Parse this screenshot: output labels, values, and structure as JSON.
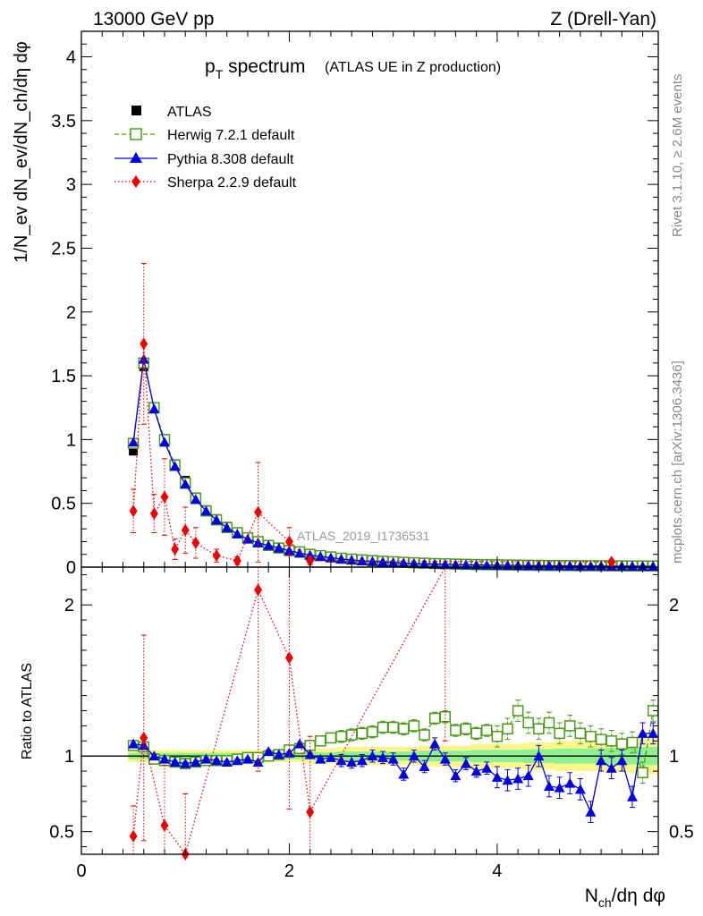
{
  "header": {
    "left": "13000 GeV pp",
    "right": "Z (Drell-Yan)"
  },
  "side": {
    "rivet": "Rivet 3.1.10, ≥ 2.6M events",
    "mcplots": "mcplots.cern.ch [arXiv:1306.3436]"
  },
  "watermark": "ATLAS_2019_I1736531",
  "chart_data": [
    {
      "type": "scatter",
      "title": "p_T spectrum",
      "title_main": "p",
      "title_sub": "T",
      "title_rest": " spectrum",
      "title_note": "(ATLAS UE in Z production)",
      "ylabel": "1/N_ev dN_ev/dN_ch/dη dφ",
      "xlim": [
        0,
        5.55
      ],
      "ylim": [
        0,
        4.2
      ],
      "yticks": [
        "0",
        "0.5",
        "1",
        "1.5",
        "2",
        "2.5",
        "3",
        "3.5",
        "4"
      ],
      "legend_position": "top-left",
      "x": [
        0.5,
        0.6,
        0.7,
        0.8,
        0.9,
        1.0,
        1.1,
        1.2,
        1.3,
        1.4,
        1.5,
        1.6,
        1.7,
        1.8,
        1.9,
        2.0,
        2.1,
        2.2,
        2.3,
        2.4,
        2.5,
        2.6,
        2.7,
        2.8,
        2.9,
        3.0,
        3.1,
        3.2,
        3.3,
        3.4,
        3.5,
        3.6,
        3.7,
        3.8,
        3.9,
        4.0,
        4.1,
        4.2,
        4.3,
        4.4,
        4.5,
        4.6,
        4.7,
        4.8,
        4.9,
        5.0,
        5.1,
        5.2,
        5.3,
        5.4,
        5.5
      ],
      "series": [
        {
          "name": "ATLAS",
          "style": "data",
          "color": "#000000",
          "values": [
            0.91,
            1.57,
            1.24,
            1.0,
            0.81,
            0.68,
            0.55,
            0.45,
            0.38,
            0.32,
            0.27,
            0.23,
            0.2,
            0.17,
            0.15,
            0.13,
            0.11,
            0.095,
            0.085,
            0.075,
            0.066,
            0.058,
            0.052,
            0.046,
            0.041,
            0.037,
            0.033,
            0.03,
            0.027,
            0.025,
            0.023,
            0.021,
            0.019,
            0.018,
            0.017,
            0.016,
            0.015,
            0.014,
            0.013,
            0.012,
            0.012,
            0.011,
            0.011,
            0.01,
            0.01,
            0.009,
            0.009,
            0.009,
            0.008,
            0.008,
            0.008
          ]
        },
        {
          "name": "Herwig 7.2.1 default",
          "style": "herwig",
          "color": "#4a9a1a",
          "values": [
            0.97,
            1.6,
            1.25,
            1.0,
            0.8,
            0.66,
            0.54,
            0.44,
            0.37,
            0.31,
            0.27,
            0.23,
            0.2,
            0.17,
            0.15,
            0.13,
            0.12,
            0.1,
            0.09,
            0.08,
            0.07,
            0.063,
            0.057,
            0.051,
            0.046,
            0.042,
            0.038,
            0.034,
            0.031,
            0.028,
            0.026,
            0.024,
            0.022,
            0.02,
            0.019,
            0.018,
            0.017,
            0.016,
            0.015,
            0.014,
            0.013,
            0.013,
            0.012,
            0.011,
            0.011,
            0.011,
            0.01,
            0.01,
            0.009,
            0.009,
            0.009
          ]
        },
        {
          "name": "Pythia 8.308 default",
          "style": "pythia",
          "color": "#0000dd",
          "values": [
            0.98,
            1.63,
            1.24,
            0.98,
            0.79,
            0.65,
            0.53,
            0.44,
            0.37,
            0.31,
            0.26,
            0.22,
            0.19,
            0.17,
            0.15,
            0.13,
            0.11,
            0.094,
            0.084,
            0.074,
            0.064,
            0.056,
            0.05,
            0.045,
            0.04,
            0.036,
            0.032,
            0.029,
            0.026,
            0.024,
            0.022,
            0.02,
            0.018,
            0.017,
            0.016,
            0.015,
            0.014,
            0.013,
            0.012,
            0.011,
            0.011,
            0.01,
            0.01,
            0.009,
            0.009,
            0.009,
            0.008,
            0.008,
            0.008,
            0.007,
            0.007
          ]
        },
        {
          "name": "Sherpa 2.2.9 default",
          "style": "sherpa",
          "color": "#ee0000",
          "x": [
            0.5,
            0.6,
            0.7,
            0.8,
            0.9,
            1.0,
            1.1,
            1.3,
            1.5,
            1.7,
            2.0,
            2.2,
            5.1
          ],
          "values": [
            0.44,
            1.75,
            0.42,
            0.55,
            0.14,
            0.29,
            0.19,
            0.09,
            0.05,
            0.43,
            0.2,
            0.05,
            0.04
          ]
        }
      ]
    },
    {
      "type": "scatter",
      "title": "",
      "ylabel": "Ratio to ATLAS",
      "xlabel": "N_ch/dη dφ",
      "xlabel_main": "N",
      "xlabel_sub": "ch",
      "xlabel_rest": "/dη dφ",
      "xlim": [
        0,
        5.55
      ],
      "ylim": [
        0.35,
        2.25
      ],
      "xticks": [
        "0",
        "2",
        "4"
      ],
      "yticks": [
        "0.5",
        "1",
        "2"
      ],
      "x": [
        0.5,
        0.6,
        0.7,
        0.8,
        0.9,
        1.0,
        1.1,
        1.2,
        1.3,
        1.4,
        1.5,
        1.6,
        1.7,
        1.8,
        1.9,
        2.0,
        2.1,
        2.2,
        2.3,
        2.4,
        2.5,
        2.6,
        2.7,
        2.8,
        2.9,
        3.0,
        3.1,
        3.2,
        3.3,
        3.4,
        3.5,
        3.6,
        3.7,
        3.8,
        3.9,
        4.0,
        4.1,
        4.2,
        4.3,
        4.4,
        4.5,
        4.6,
        4.7,
        4.8,
        4.9,
        5.0,
        5.1,
        5.2,
        5.3,
        5.4,
        5.5
      ],
      "band_halfwidth": [
        0.02,
        0.02,
        0.02,
        0.02,
        0.02,
        0.02,
        0.02,
        0.02,
        0.02,
        0.02,
        0.02,
        0.02,
        0.02,
        0.02,
        0.02,
        0.02,
        0.02,
        0.025,
        0.025,
        0.025,
        0.03,
        0.03,
        0.03,
        0.03,
        0.03,
        0.03,
        0.03,
        0.03,
        0.035,
        0.035,
        0.035,
        0.035,
        0.035,
        0.04,
        0.04,
        0.04,
        0.04,
        0.04,
        0.045,
        0.045,
        0.045,
        0.05,
        0.05,
        0.05,
        0.05,
        0.05,
        0.055,
        0.055,
        0.055,
        0.06,
        0.06
      ],
      "series": [
        {
          "name": "Herwig 7.2.1 default",
          "style": "herwig",
          "color": "#4a9a1a",
          "values": [
            1.07,
            1.06,
            0.98,
            0.97,
            0.96,
            0.95,
            0.96,
            0.97,
            0.97,
            0.97,
            0.98,
            0.99,
            0.99,
            1.0,
            1.01,
            1.04,
            1.05,
            1.07,
            1.1,
            1.12,
            1.13,
            1.14,
            1.15,
            1.16,
            1.19,
            1.19,
            1.18,
            1.2,
            1.14,
            1.25,
            1.26,
            1.17,
            1.18,
            1.15,
            1.17,
            1.13,
            1.18,
            1.3,
            1.22,
            1.18,
            1.22,
            1.15,
            1.2,
            1.15,
            1.13,
            1.11,
            1.1,
            1.08,
            1.09,
            0.89,
            1.3
          ]
        },
        {
          "name": "Pythia 8.308 default",
          "style": "pythia",
          "color": "#0000dd",
          "values": [
            1.08,
            1.07,
            1.0,
            0.98,
            0.96,
            0.95,
            0.96,
            0.98,
            0.97,
            0.96,
            0.97,
            0.98,
            0.96,
            1.03,
            1.01,
            1.02,
            1.08,
            1.01,
            0.98,
            0.99,
            0.97,
            0.96,
            0.97,
            1.0,
            0.99,
            0.98,
            0.88,
            1.0,
            0.93,
            1.08,
            0.98,
            0.87,
            0.95,
            0.9,
            0.92,
            0.86,
            0.84,
            0.85,
            0.87,
            1.0,
            0.8,
            0.79,
            0.82,
            0.78,
            0.63,
            0.97,
            0.92,
            0.97,
            0.73,
            1.15,
            1.15
          ]
        },
        {
          "name": "Sherpa 2.2.9 default",
          "style": "sherpa",
          "color": "#ee0000",
          "x": [
            0.5,
            0.6,
            0.8,
            1.0,
            1.7,
            2.0,
            2.2,
            3.5
          ],
          "values": [
            0.47,
            1.12,
            0.54,
            0.35,
            2.1,
            1.65,
            0.63,
            2.3
          ]
        }
      ]
    }
  ]
}
